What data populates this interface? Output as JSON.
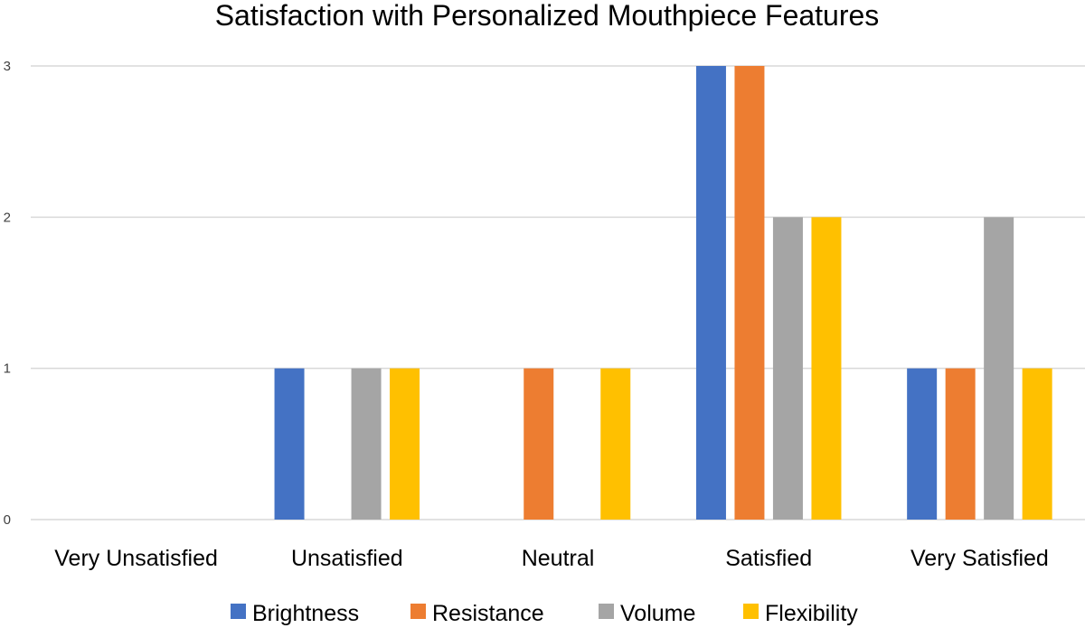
{
  "chart_data": {
    "type": "bar",
    "title": "Satisfaction with Personalized Mouthpiece Features",
    "xlabel": "",
    "ylabel": "",
    "ylim": [
      0,
      3
    ],
    "yticks": [
      "0",
      "1",
      "2",
      "3"
    ],
    "grid": true,
    "legend_position": "bottom",
    "categories": [
      "Very Unsatisfied",
      "Unsatisfied",
      "Neutral",
      "Satisfied",
      "Very Satisfied"
    ],
    "series": [
      {
        "name": "Brightness",
        "color": "#4472C4",
        "values": [
          0,
          1,
          0,
          3,
          1
        ]
      },
      {
        "name": "Resistance",
        "color": "#ED7D31",
        "values": [
          0,
          0,
          1,
          3,
          1
        ]
      },
      {
        "name": "Volume",
        "color": "#A5A5A5",
        "values": [
          0,
          1,
          0,
          2,
          2
        ]
      },
      {
        "name": "Flexibility",
        "color": "#FFC000",
        "values": [
          0,
          1,
          1,
          2,
          1
        ]
      }
    ]
  }
}
